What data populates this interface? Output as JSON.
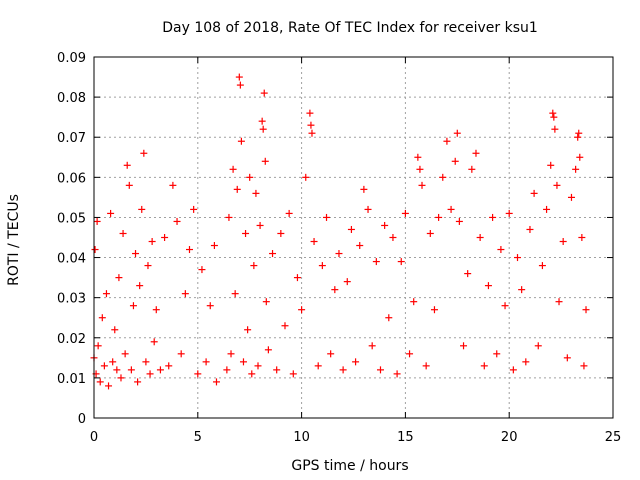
{
  "chart_data": {
    "type": "scatter",
    "title": "Day 108 of 2018, Rate Of TEC Index for receiver ksu1",
    "xlabel": "GPS time / hours",
    "ylabel": "ROTI / TECUs",
    "xlim": [
      0,
      25
    ],
    "ylim": [
      0,
      0.09
    ],
    "x_ticks": [
      0,
      5,
      10,
      15,
      20,
      25
    ],
    "x_tick_labels": [
      "0",
      "5",
      "10",
      "15",
      "20",
      "25"
    ],
    "y_ticks": [
      0,
      0.01,
      0.02,
      0.03,
      0.04,
      0.05,
      0.06,
      0.07,
      0.08,
      0.09
    ],
    "y_tick_labels": [
      "0",
      "0.01",
      "0.02",
      "0.03",
      "0.04",
      "0.05",
      "0.06",
      "0.07",
      "0.08",
      "0.09"
    ],
    "grid": true,
    "marker": "+",
    "series": [
      {
        "color": "#ff0000",
        "points": [
          [
            0.0,
            0.015
          ],
          [
            0.05,
            0.042
          ],
          [
            0.1,
            0.011
          ],
          [
            0.15,
            0.049
          ],
          [
            0.2,
            0.018
          ],
          [
            0.3,
            0.009
          ],
          [
            0.4,
            0.025
          ],
          [
            0.5,
            0.013
          ],
          [
            0.6,
            0.031
          ],
          [
            0.7,
            0.008
          ],
          [
            0.8,
            0.051
          ],
          [
            0.9,
            0.014
          ],
          [
            1.0,
            0.022
          ],
          [
            1.1,
            0.012
          ],
          [
            1.2,
            0.035
          ],
          [
            1.3,
            0.01
          ],
          [
            1.4,
            0.046
          ],
          [
            1.5,
            0.016
          ],
          [
            1.6,
            0.063
          ],
          [
            1.7,
            0.058
          ],
          [
            1.8,
            0.012
          ],
          [
            1.9,
            0.028
          ],
          [
            2.0,
            0.041
          ],
          [
            2.1,
            0.009
          ],
          [
            2.2,
            0.033
          ],
          [
            2.3,
            0.052
          ],
          [
            2.4,
            0.066
          ],
          [
            2.5,
            0.014
          ],
          [
            2.6,
            0.038
          ],
          [
            2.7,
            0.011
          ],
          [
            2.8,
            0.044
          ],
          [
            2.9,
            0.019
          ],
          [
            3.0,
            0.027
          ],
          [
            3.2,
            0.012
          ],
          [
            3.4,
            0.045
          ],
          [
            3.6,
            0.013
          ],
          [
            3.8,
            0.058
          ],
          [
            4.0,
            0.049
          ],
          [
            4.2,
            0.016
          ],
          [
            4.4,
            0.031
          ],
          [
            4.6,
            0.042
          ],
          [
            4.8,
            0.052
          ],
          [
            5.0,
            0.011
          ],
          [
            5.2,
            0.037
          ],
          [
            5.4,
            0.014
          ],
          [
            5.6,
            0.028
          ],
          [
            5.8,
            0.043
          ],
          [
            5.9,
            0.009
          ],
          [
            6.4,
            0.012
          ],
          [
            6.5,
            0.05
          ],
          [
            6.6,
            0.016
          ],
          [
            6.7,
            0.062
          ],
          [
            6.8,
            0.031
          ],
          [
            6.9,
            0.057
          ],
          [
            7.0,
            0.085
          ],
          [
            7.05,
            0.083
          ],
          [
            7.1,
            0.069
          ],
          [
            7.2,
            0.014
          ],
          [
            7.3,
            0.046
          ],
          [
            7.4,
            0.022
          ],
          [
            7.5,
            0.06
          ],
          [
            7.6,
            0.011
          ],
          [
            7.7,
            0.038
          ],
          [
            7.8,
            0.056
          ],
          [
            7.9,
            0.013
          ],
          [
            8.0,
            0.048
          ],
          [
            8.1,
            0.074
          ],
          [
            8.15,
            0.072
          ],
          [
            8.2,
            0.081
          ],
          [
            8.25,
            0.064
          ],
          [
            8.3,
            0.029
          ],
          [
            8.4,
            0.017
          ],
          [
            8.6,
            0.041
          ],
          [
            8.8,
            0.012
          ],
          [
            9.0,
            0.046
          ],
          [
            9.2,
            0.023
          ],
          [
            9.4,
            0.051
          ],
          [
            9.6,
            0.011
          ],
          [
            9.8,
            0.035
          ],
          [
            10.0,
            0.027
          ],
          [
            10.2,
            0.06
          ],
          [
            10.4,
            0.076
          ],
          [
            10.45,
            0.073
          ],
          [
            10.5,
            0.071
          ],
          [
            10.6,
            0.044
          ],
          [
            10.8,
            0.013
          ],
          [
            11.0,
            0.038
          ],
          [
            11.2,
            0.05
          ],
          [
            11.4,
            0.016
          ],
          [
            11.6,
            0.032
          ],
          [
            11.8,
            0.041
          ],
          [
            12.0,
            0.012
          ],
          [
            12.2,
            0.034
          ],
          [
            12.4,
            0.047
          ],
          [
            12.6,
            0.014
          ],
          [
            12.8,
            0.043
          ],
          [
            13.0,
            0.057
          ],
          [
            13.2,
            0.052
          ],
          [
            13.4,
            0.018
          ],
          [
            13.6,
            0.039
          ],
          [
            13.8,
            0.012
          ],
          [
            14.0,
            0.048
          ],
          [
            14.2,
            0.025
          ],
          [
            14.4,
            0.045
          ],
          [
            14.6,
            0.011
          ],
          [
            14.8,
            0.039
          ],
          [
            15.0,
            0.051
          ],
          [
            15.2,
            0.016
          ],
          [
            15.4,
            0.029
          ],
          [
            15.6,
            0.065
          ],
          [
            15.7,
            0.062
          ],
          [
            15.8,
            0.058
          ],
          [
            16.0,
            0.013
          ],
          [
            16.2,
            0.046
          ],
          [
            16.4,
            0.027
          ],
          [
            16.6,
            0.05
          ],
          [
            16.8,
            0.06
          ],
          [
            17.0,
            0.069
          ],
          [
            17.2,
            0.052
          ],
          [
            17.4,
            0.064
          ],
          [
            17.5,
            0.071
          ],
          [
            17.6,
            0.049
          ],
          [
            17.8,
            0.018
          ],
          [
            18.0,
            0.036
          ],
          [
            18.2,
            0.062
          ],
          [
            18.4,
            0.066
          ],
          [
            18.6,
            0.045
          ],
          [
            18.8,
            0.013
          ],
          [
            19.0,
            0.033
          ],
          [
            19.2,
            0.05
          ],
          [
            19.4,
            0.016
          ],
          [
            19.6,
            0.042
          ],
          [
            19.8,
            0.028
          ],
          [
            20.0,
            0.051
          ],
          [
            20.2,
            0.012
          ],
          [
            20.4,
            0.04
          ],
          [
            20.6,
            0.032
          ],
          [
            20.8,
            0.014
          ],
          [
            21.0,
            0.047
          ],
          [
            21.2,
            0.056
          ],
          [
            21.4,
            0.018
          ],
          [
            21.6,
            0.038
          ],
          [
            21.8,
            0.052
          ],
          [
            22.0,
            0.063
          ],
          [
            22.1,
            0.076
          ],
          [
            22.15,
            0.075
          ],
          [
            22.2,
            0.072
          ],
          [
            22.3,
            0.058
          ],
          [
            22.4,
            0.029
          ],
          [
            22.6,
            0.044
          ],
          [
            22.8,
            0.015
          ],
          [
            23.0,
            0.055
          ],
          [
            23.2,
            0.062
          ],
          [
            23.3,
            0.07
          ],
          [
            23.35,
            0.071
          ],
          [
            23.4,
            0.065
          ],
          [
            23.5,
            0.045
          ],
          [
            23.6,
            0.013
          ],
          [
            23.7,
            0.027
          ]
        ]
      }
    ]
  }
}
